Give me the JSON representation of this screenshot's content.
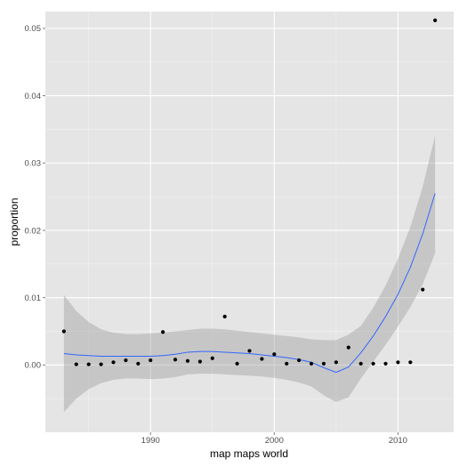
{
  "chart_data": {
    "type": "scatter",
    "xlabel": "map maps world",
    "ylabel": "proportion",
    "xlim": [
      1981.5,
      2014.5
    ],
    "ylim": [
      -0.01,
      0.0525
    ],
    "x_ticks": [
      1990,
      2000,
      2010
    ],
    "x_tick_labels": [
      "1990",
      "2000",
      "2010"
    ],
    "y_ticks": [
      0.0,
      0.01,
      0.02,
      0.03,
      0.04,
      0.05
    ],
    "y_tick_labels": [
      "0.00",
      "0.01",
      "0.02",
      "0.03",
      "0.04",
      "0.05"
    ],
    "grid": true,
    "points": [
      {
        "x": 1983,
        "y": 0.005
      },
      {
        "x": 1984,
        "y": 0.0001
      },
      {
        "x": 1985,
        "y": 0.0001
      },
      {
        "x": 1986,
        "y": 0.0001
      },
      {
        "x": 1987,
        "y": 0.0004
      },
      {
        "x": 1988,
        "y": 0.0007
      },
      {
        "x": 1989,
        "y": 0.0002
      },
      {
        "x": 1990,
        "y": 0.0007
      },
      {
        "x": 1991,
        "y": 0.0049
      },
      {
        "x": 1992,
        "y": 0.0008
      },
      {
        "x": 1993,
        "y": 0.0006
      },
      {
        "x": 1994,
        "y": 0.0005
      },
      {
        "x": 1995,
        "y": 0.001
      },
      {
        "x": 1996,
        "y": 0.0072
      },
      {
        "x": 1997,
        "y": 0.0002
      },
      {
        "x": 1998,
        "y": 0.0021
      },
      {
        "x": 1999,
        "y": 0.0009
      },
      {
        "x": 2000,
        "y": 0.0016
      },
      {
        "x": 2001,
        "y": 0.0002
      },
      {
        "x": 2002,
        "y": 0.0007
      },
      {
        "x": 2003,
        "y": 0.0002
      },
      {
        "x": 2004,
        "y": 0.0002
      },
      {
        "x": 2005,
        "y": 0.0004
      },
      {
        "x": 2006,
        "y": 0.0026
      },
      {
        "x": 2007,
        "y": 0.0002
      },
      {
        "x": 2008,
        "y": 0.0002
      },
      {
        "x": 2009,
        "y": 0.0002
      },
      {
        "x": 2010,
        "y": 0.0004
      },
      {
        "x": 2011,
        "y": 0.0004
      },
      {
        "x": 2012,
        "y": 0.0112
      },
      {
        "x": 2013,
        "y": 0.0512
      }
    ],
    "smooth": [
      {
        "x": 1983,
        "y": 0.0017,
        "lo": -0.007,
        "hi": 0.0104
      },
      {
        "x": 1984,
        "y": 0.0015,
        "lo": -0.005,
        "hi": 0.008
      },
      {
        "x": 1985,
        "y": 0.0014,
        "lo": -0.0036,
        "hi": 0.0064
      },
      {
        "x": 1986,
        "y": 0.0013,
        "lo": -0.0027,
        "hi": 0.0053
      },
      {
        "x": 1987,
        "y": 0.0013,
        "lo": -0.0022,
        "hi": 0.0048
      },
      {
        "x": 1988,
        "y": 0.0013,
        "lo": -0.002,
        "hi": 0.0046
      },
      {
        "x": 1989,
        "y": 0.0013,
        "lo": -0.002,
        "hi": 0.0046
      },
      {
        "x": 1990,
        "y": 0.0013,
        "lo": -0.0021,
        "hi": 0.0047
      },
      {
        "x": 1991,
        "y": 0.0014,
        "lo": -0.002,
        "hi": 0.0048
      },
      {
        "x": 1992,
        "y": 0.0016,
        "lo": -0.0018,
        "hi": 0.005
      },
      {
        "x": 1993,
        "y": 0.0019,
        "lo": -0.0014,
        "hi": 0.0052
      },
      {
        "x": 1994,
        "y": 0.002,
        "lo": -0.0013,
        "hi": 0.0054
      },
      {
        "x": 1995,
        "y": 0.002,
        "lo": -0.0013,
        "hi": 0.0054
      },
      {
        "x": 1996,
        "y": 0.0019,
        "lo": -0.0014,
        "hi": 0.0053
      },
      {
        "x": 1997,
        "y": 0.0018,
        "lo": -0.0015,
        "hi": 0.0051
      },
      {
        "x": 1998,
        "y": 0.0017,
        "lo": -0.0016,
        "hi": 0.0049
      },
      {
        "x": 1999,
        "y": 0.0015,
        "lo": -0.0017,
        "hi": 0.0047
      },
      {
        "x": 2000,
        "y": 0.0013,
        "lo": -0.0019,
        "hi": 0.0045
      },
      {
        "x": 2001,
        "y": 0.0011,
        "lo": -0.0022,
        "hi": 0.0043
      },
      {
        "x": 2002,
        "y": 0.0008,
        "lo": -0.0026,
        "hi": 0.0041
      },
      {
        "x": 2003,
        "y": 0.0004,
        "lo": -0.0032,
        "hi": 0.0038
      },
      {
        "x": 2004,
        "y": -0.0004,
        "lo": -0.0045,
        "hi": 0.0037
      },
      {
        "x": 2005,
        "y": -0.0011,
        "lo": -0.0055,
        "hi": 0.0037
      },
      {
        "x": 2006,
        "y": -0.0003,
        "lo": -0.0048,
        "hi": 0.0045
      },
      {
        "x": 2007,
        "y": 0.0018,
        "lo": -0.002,
        "hi": 0.0058
      },
      {
        "x": 2008,
        "y": 0.0043,
        "lo": 0.0005,
        "hi": 0.0085
      },
      {
        "x": 2009,
        "y": 0.0072,
        "lo": 0.003,
        "hi": 0.0118
      },
      {
        "x": 2010,
        "y": 0.0105,
        "lo": 0.0057,
        "hi": 0.0158
      },
      {
        "x": 2011,
        "y": 0.0145,
        "lo": 0.0086,
        "hi": 0.0205
      },
      {
        "x": 2012,
        "y": 0.0195,
        "lo": 0.012,
        "hi": 0.0265
      },
      {
        "x": 2013,
        "y": 0.0255,
        "lo": 0.0166,
        "hi": 0.0341
      }
    ],
    "colors": {
      "panel": "#e5e5e5",
      "grid_major": "#ffffff",
      "grid_minor": "#f2f2f2",
      "point": "#000000",
      "smooth_line": "#3366ff",
      "ribbon": "#999999"
    }
  }
}
